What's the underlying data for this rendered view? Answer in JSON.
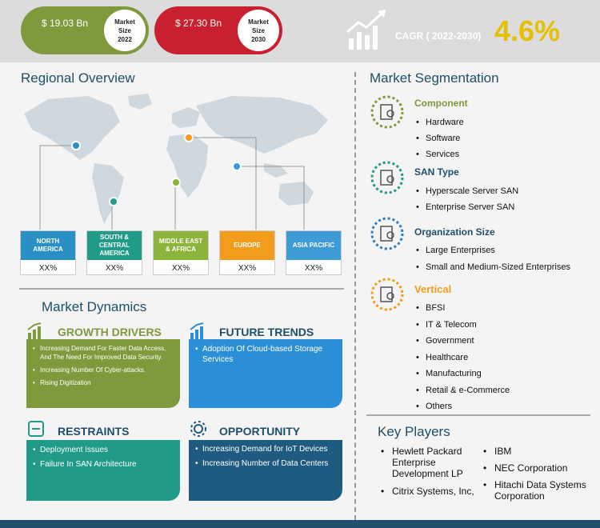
{
  "header": {
    "size_2022": {
      "value": "$ 19.03 Bn",
      "badge_line1": "Market",
      "badge_line2": "Size",
      "badge_year": "2022"
    },
    "size_2030": {
      "value": "$ 27.30 Bn",
      "badge_line1": "Market",
      "badge_line2": "Size",
      "badge_year": "2030"
    },
    "cagr_label": "CAGR ( 2022-2030)",
    "cagr_value": "4.6%"
  },
  "regional": {
    "title": "Regional Overview",
    "regions": [
      {
        "name": "NORTH AMERICA",
        "value": "XX%",
        "color": "#2a8fc4"
      },
      {
        "name": "SOUTH & CENTRAL AMERICA",
        "value": "XX%",
        "color": "#1f9b87"
      },
      {
        "name": "MIDDLE EAST & AFRICA",
        "value": "XX%",
        "color": "#8db43a"
      },
      {
        "name": "EUROPE",
        "value": "XX%",
        "color": "#f39c1b"
      },
      {
        "name": "ASIA PACIFIC",
        "value": "XX%",
        "color": "#3d9bd6"
      }
    ]
  },
  "dynamics": {
    "title": "Market Dynamics",
    "growth_drivers": {
      "title": "GROWTH DRIVERS",
      "color": "#7f9a3c",
      "items": [
        "Increasing Demand For Faster Data Access, And The Need For Improved Data Security.",
        "Increasing Number Of Cyber-attacks.",
        "Rising Digitization"
      ]
    },
    "future_trends": {
      "title": "FUTURE TRENDS",
      "color": "#2a8fd6",
      "items": [
        "Adoption Of Cloud-based Storage Services"
      ]
    },
    "restraints": {
      "title": "RESTRAINTS",
      "color": "#1f9b87",
      "items": [
        "Deployment Issues",
        "Failure In SAN Architecture"
      ]
    },
    "opportunity": {
      "title": "OPPORTUNITY",
      "color": "#1f5b80",
      "items": [
        "Increasing Demand for IoT Devices",
        "Increasing Number of Data Centers"
      ]
    }
  },
  "segmentation": {
    "title": "Market Segmentation",
    "groups": [
      {
        "title": "Component",
        "color": "#7f9a3c",
        "items": [
          "Hardware",
          "Software",
          "Services"
        ]
      },
      {
        "title": "SAN Type",
        "color": "#1f9b87",
        "items": [
          "Hyperscale Server SAN",
          "Enterprise Server SAN"
        ]
      },
      {
        "title": "Organization Size",
        "color": "#2a7fc4",
        "items": [
          "Large Enterprises",
          "Small and Medium-Sized Enterprises"
        ]
      },
      {
        "title": "Vertical",
        "color": "#f39c1b",
        "items": [
          "BFSI",
          "IT & Telecom",
          "Government",
          "Healthcare",
          "Manufacturing",
          "Retail & e-Commerce",
          "Others"
        ]
      }
    ]
  },
  "key_players": {
    "title": "Key Players",
    "left": [
      "Hewlett Packard Enterprise Development LP",
      "Citrix Systems, Inc,"
    ],
    "right": [
      "IBM",
      "NEC Corporation",
      "Hitachi Data Systems Corporation"
    ]
  }
}
